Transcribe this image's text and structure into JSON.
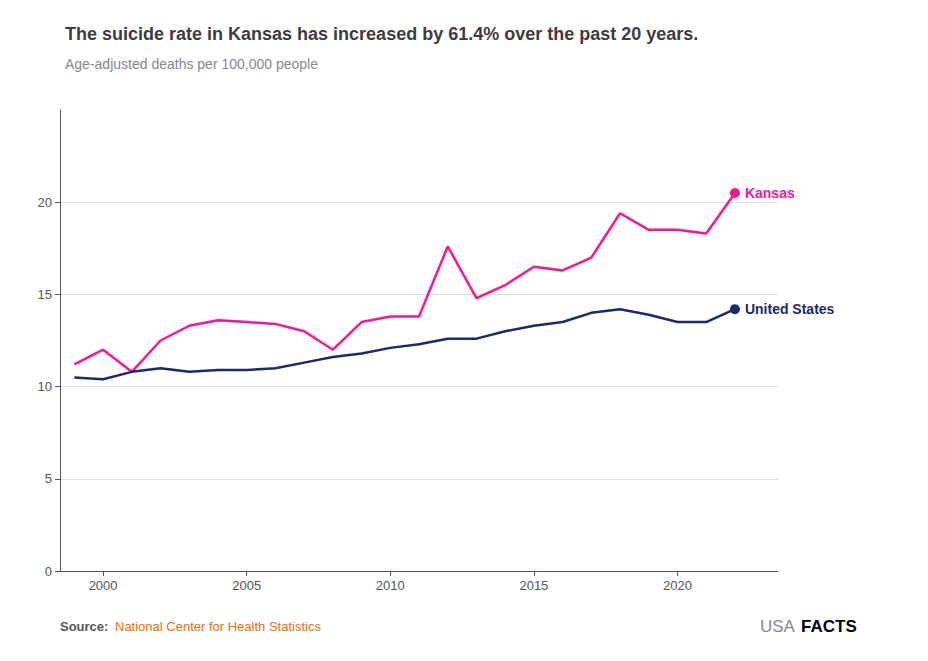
{
  "chart_data": {
    "type": "line",
    "title": "The suicide rate in Kansas has increased by 61.4% over the past 20 years.",
    "subtitle": "Age-adjusted deaths per 100,000 people",
    "x": [
      1999,
      2000,
      2001,
      2002,
      2003,
      2004,
      2005,
      2006,
      2007,
      2008,
      2009,
      2010,
      2011,
      2012,
      2013,
      2014,
      2015,
      2016,
      2017,
      2018,
      2019,
      2020,
      2021,
      2022
    ],
    "series": [
      {
        "name": "Kansas",
        "color": "#FF1493",
        "values": [
          11.2,
          12.0,
          10.8,
          12.5,
          13.3,
          13.6,
          13.5,
          13.4,
          13.0,
          12.0,
          13.5,
          13.8,
          13.8,
          17.6,
          14.8,
          15.5,
          16.5,
          16.3,
          17.0,
          19.4,
          18.5,
          18.5,
          18.3,
          20.5
        ]
      },
      {
        "name": "United States",
        "color": "#1B2A6B",
        "values": [
          10.5,
          10.4,
          10.8,
          11.0,
          10.8,
          10.9,
          10.9,
          11.0,
          11.3,
          11.6,
          11.8,
          12.1,
          12.3,
          12.6,
          12.6,
          13.0,
          13.3,
          13.5,
          14.0,
          14.2,
          13.9,
          13.5,
          13.5,
          14.2
        ]
      }
    ],
    "xlim": [
      1998.5,
      2023.5
    ],
    "xticks": [
      2000,
      2005,
      2010,
      2015,
      2020
    ],
    "ylim": [
      0,
      25
    ],
    "yticks": [
      0,
      5,
      10,
      15,
      20
    ],
    "grid": true,
    "annotations": [
      {
        "text": "Source:",
        "color": "#555555"
      },
      {
        "text": "National Center for Health Statistics",
        "color": "#E8700A"
      },
      {
        "text": "USA",
        "color": "#888888"
      },
      {
        "text": "FACTS",
        "color": "#000000"
      }
    ]
  }
}
